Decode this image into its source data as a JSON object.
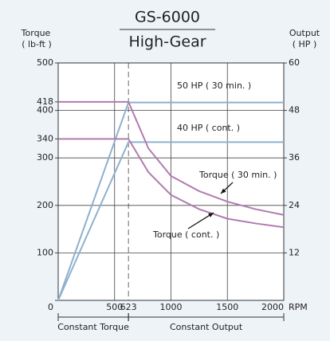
{
  "chart_data": {
    "type": "line",
    "title": "GS-6000",
    "subtitle": "High-Gear",
    "ylabel": "Torque",
    "ylabel_unit": "( lb-ft )",
    "y2label": "Output",
    "y2label_unit": "( HP )",
    "xlabel": "RPM",
    "xlim": [
      0,
      2000
    ],
    "xticks": [
      500,
      623,
      1000,
      1500,
      2000
    ],
    "ylim": [
      0,
      500
    ],
    "yticks": [
      0,
      100,
      200,
      300,
      340,
      400,
      418,
      500
    ],
    "y2lim": [
      0,
      60
    ],
    "y2ticks": [
      12,
      24,
      36,
      48,
      60
    ],
    "grid": true,
    "series": [
      {
        "name": "50 HP ( 30 min. )",
        "color": "#8eb0ce",
        "axis": "y2",
        "x": [
          0,
          623,
          2000
        ],
        "values": [
          0,
          50,
          50
        ]
      },
      {
        "name": "40 HP ( cont. )",
        "color": "#8eb0ce",
        "axis": "y2",
        "x": [
          0,
          623,
          2000
        ],
        "values": [
          0,
          40,
          40
        ]
      },
      {
        "name": "Torque ( 30 min. )",
        "color": "#b07cae",
        "x": [
          0,
          623,
          800,
          1000,
          1250,
          1500,
          1750,
          2000
        ],
        "values": [
          418,
          418,
          320,
          262,
          230,
          208,
          192,
          180
        ]
      },
      {
        "name": "Torque ( cont. )",
        "color": "#b07cae",
        "x": [
          0,
          623,
          800,
          1000,
          1250,
          1500,
          1750,
          2000
        ],
        "values": [
          340,
          340,
          270,
          222,
          192,
          172,
          162,
          154
        ]
      }
    ],
    "regions": [
      {
        "label": "Constant Torque",
        "x": [
          0,
          623
        ]
      },
      {
        "label": "Constant Output",
        "x": [
          623,
          2000
        ]
      }
    ]
  }
}
